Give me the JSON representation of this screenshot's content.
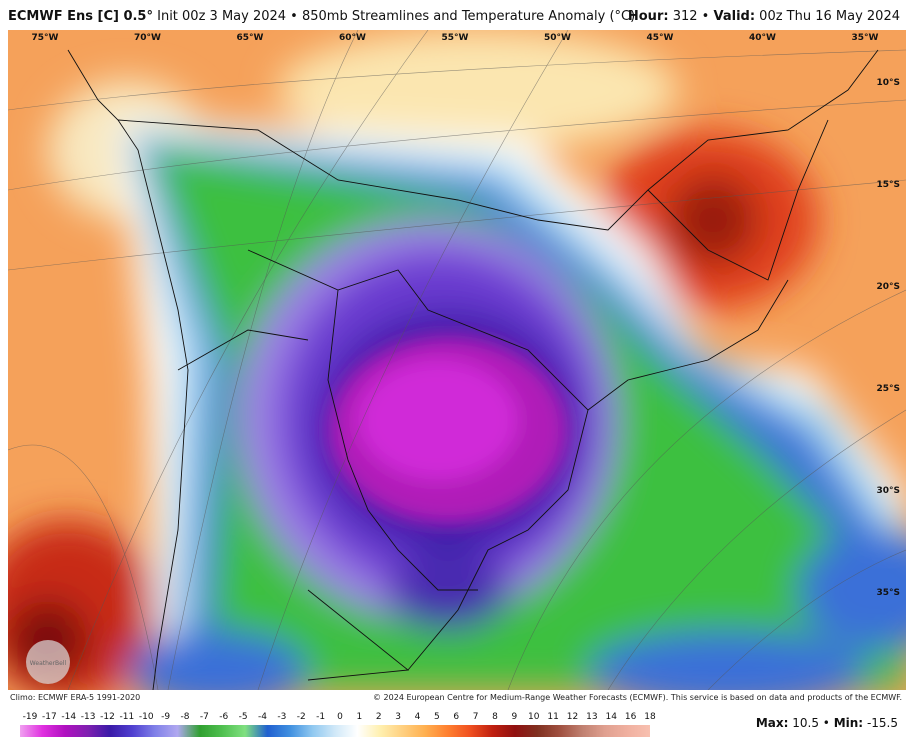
{
  "header": {
    "model": "ECMWF Ens [C] 0.5°",
    "description": "Init 00z 3 May 2024 • 850mb Streamlines and Temperature Anomaly (°C)",
    "hour_label": "Hour:",
    "hour": "312",
    "separator": "•",
    "valid_label": "Valid:",
    "valid": "00z Thu 16 May 2024"
  },
  "map": {
    "longitudes": [
      "75°W",
      "70°W",
      "65°W",
      "60°W",
      "55°W",
      "50°W",
      "45°W",
      "40°W",
      "35°W"
    ],
    "latitudes": [
      "10°S",
      "15°S",
      "20°S",
      "25°S",
      "30°S",
      "35°S"
    ],
    "watermark": "WeatherBell"
  },
  "footer": {
    "climo": "Climo: ECMWF ERA-5 1991-2020",
    "credit": "© 2024 European Centre for Medium-Range Weather Forecasts (ECMWF). This service is based on data and products of the ECMWF."
  },
  "colorbar": {
    "labels": [
      -19,
      -17,
      -14,
      -13,
      -12,
      -11,
      -10,
      -9,
      -8,
      -7,
      -6,
      -5,
      -4,
      -3,
      -2,
      -1,
      0,
      1,
      2,
      3,
      4,
      5,
      6,
      7,
      8,
      9,
      10,
      11,
      12,
      13,
      14,
      16,
      18
    ]
  },
  "stats": {
    "max_label": "Max:",
    "max": 10.5,
    "separator": "•",
    "min_label": "Min:",
    "min": -15.5
  }
}
